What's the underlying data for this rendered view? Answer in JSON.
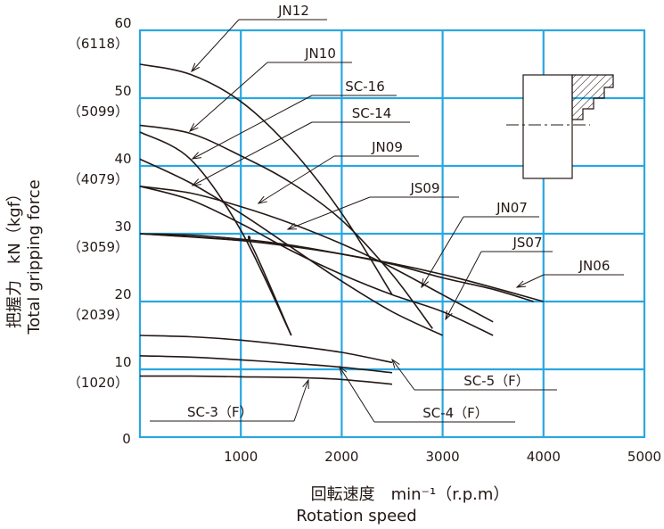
{
  "chart_data": {
    "type": "line",
    "xlabel": "回転速度　min⁻¹（r.p.m）",
    "xlabel_en": "Rotation speed",
    "ylabel": "把握力　kN（kgf）",
    "ylabel_en": "Total gripping force",
    "xlim": [
      0,
      5000
    ],
    "ylim": [
      0,
      60
    ],
    "grid": true,
    "x_ticks": [
      "1000",
      "2000",
      "3000",
      "4000",
      "5000"
    ],
    "x_origin_tick": "0",
    "y_ticks": [
      {
        "value": 10,
        "label": "10",
        "sub": "（1020）"
      },
      {
        "value": 20,
        "label": "20",
        "sub": "（2039）"
      },
      {
        "value": 30,
        "label": "30",
        "sub": "（3059）"
      },
      {
        "value": 40,
        "label": "40",
        "sub": "（4079）"
      },
      {
        "value": 50,
        "label": "50",
        "sub": "（5099）"
      },
      {
        "value": 60,
        "label": "60",
        "sub": "（6118）"
      }
    ],
    "series": [
      {
        "name": "JN12",
        "x": [
          0,
          500,
          1000,
          1500,
          2000,
          2500
        ],
        "y": [
          55.0,
          53.5,
          49.5,
          42.5,
          33.0,
          21.0
        ]
      },
      {
        "name": "JN10",
        "x": [
          0,
          500,
          1000,
          1500
        ],
        "y": [
          45.0,
          41.0,
          30.5,
          15.0
        ]
      },
      {
        "name": "SC-16",
        "x": [
          0,
          500,
          1000,
          1500,
          2000,
          2500,
          2900
        ],
        "y": [
          46.0,
          44.8,
          41.5,
          37.5,
          32.0,
          24.0,
          16.0
        ]
      },
      {
        "name": "SC-14",
        "x": [
          0,
          500,
          1000,
          1500,
          2000,
          2500,
          3000
        ],
        "y": [
          41.0,
          37.5,
          33.0,
          28.0,
          23.0,
          18.5,
          15.0
        ]
      },
      {
        "name": "JN09",
        "x": [
          0,
          500,
          1000,
          1500,
          2000,
          2500,
          3000,
          3500
        ],
        "y": [
          37.0,
          36.0,
          34.0,
          31.5,
          28.5,
          25.0,
          21.0,
          17.0
        ]
      },
      {
        "name": "JS09",
        "x": [
          0,
          500,
          1000,
          1500,
          2000,
          2500,
          3000,
          3500,
          3900
        ],
        "y": [
          30.0,
          29.8,
          29.2,
          28.3,
          27.0,
          25.5,
          23.5,
          21.8,
          20.0
        ]
      },
      {
        "name": "JN07",
        "x": [
          0,
          500,
          1000,
          1500,
          2000,
          2500,
          3000,
          3500
        ],
        "y": [
          37.0,
          35.0,
          31.5,
          27.5,
          24.0,
          21.0,
          18.5,
          15.0
        ]
      },
      {
        "name": "JS07",
        "x": [
          0,
          1000,
          1100,
          1500
        ],
        "y": [
          30.0,
          29.0,
          28.5,
          15.0
        ]
      },
      {
        "name": "JN06",
        "x": [
          0,
          1000,
          2000,
          3000,
          4000
        ],
        "y": [
          30.0,
          29.0,
          27.0,
          24.0,
          20.0
        ]
      },
      {
        "name": "SC-5（F）",
        "x": [
          0,
          500,
          1000,
          1500,
          2000,
          2500
        ],
        "y": [
          15.0,
          14.8,
          14.3,
          13.5,
          12.5,
          11.0
        ]
      },
      {
        "name": "SC-4（F）",
        "x": [
          0,
          500,
          1000,
          1500,
          2000,
          2500
        ],
        "y": [
          12.0,
          11.8,
          11.4,
          10.9,
          10.3,
          9.5
        ]
      },
      {
        "name": "SC-3（F）",
        "x": [
          0,
          500,
          1000,
          1500,
          2000,
          2500
        ],
        "y": [
          9.0,
          9.0,
          8.9,
          8.8,
          8.5,
          7.8
        ]
      }
    ]
  },
  "leaders": [
    {
      "name": "JN12",
      "label": "JN12"
    },
    {
      "name": "JN10",
      "label": "JN10"
    },
    {
      "name": "SC-16",
      "label": "SC-16"
    },
    {
      "name": "SC-14",
      "label": "SC-14"
    },
    {
      "name": "JN09",
      "label": "JN09"
    },
    {
      "name": "JS09",
      "label": "JS09"
    },
    {
      "name": "JN07",
      "label": "JN07"
    },
    {
      "name": "JS07",
      "label": "JS07"
    },
    {
      "name": "JN06",
      "label": "JN06"
    },
    {
      "name": "SC-5",
      "label": "SC-5（F）"
    },
    {
      "name": "SC-4",
      "label": "SC-4（F）"
    },
    {
      "name": "SC-3",
      "label": "SC-3（F）"
    }
  ],
  "colors": {
    "grid": "#29a7e0",
    "ink": "#231815"
  }
}
